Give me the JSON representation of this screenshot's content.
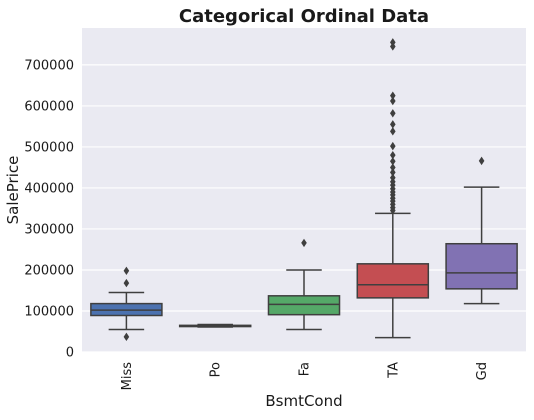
{
  "chart_data": {
    "type": "box",
    "title": "Categorical Ordinal Data",
    "xlabel": "BsmtCond",
    "ylabel": "SalePrice",
    "ylim": [
      0,
      790000
    ],
    "yticks": [
      0,
      100000,
      200000,
      300000,
      400000,
      500000,
      600000,
      700000
    ],
    "ytick_labels": [
      "0",
      "100000",
      "200000",
      "300000",
      "400000",
      "500000",
      "600000",
      "700000"
    ],
    "grid": true,
    "background": "#eaeaf2",
    "categories": [
      "Miss",
      "Po",
      "Fa",
      "TA",
      "Gd"
    ],
    "boxes": [
      {
        "category": "Miss",
        "color": "#4c72b0",
        "whisker_low": 55000,
        "q1": 89000,
        "median": 102000,
        "q3": 118000,
        "whisker_high": 145000,
        "outliers": [
          198000,
          168000,
          37000
        ]
      },
      {
        "category": "Po",
        "color": "#dd8452",
        "whisker_low": 61000,
        "q1": 62000,
        "median": 64000,
        "q3": 65000,
        "whisker_high": 67000,
        "outliers": []
      },
      {
        "category": "Fa",
        "color": "#55a868",
        "whisker_low": 55000,
        "q1": 91000,
        "median": 116000,
        "q3": 137000,
        "whisker_high": 200000,
        "outliers": [
          266000
        ]
      },
      {
        "category": "TA",
        "color": "#c44e52",
        "whisker_low": 35000,
        "q1": 132000,
        "median": 164000,
        "q3": 215000,
        "whisker_high": 338000,
        "outliers": [
          345000,
          352000,
          360000,
          368000,
          375000,
          383000,
          390000,
          398000,
          407000,
          415000,
          425000,
          438000,
          450000,
          465000,
          480000,
          502000,
          538000,
          555000,
          582000,
          612000,
          625000,
          745000,
          755000
        ]
      },
      {
        "category": "Gd",
        "color": "#8172b3",
        "whisker_low": 118000,
        "q1": 154000,
        "median": 193000,
        "q3": 264000,
        "whisker_high": 402000,
        "outliers": [
          466000
        ]
      }
    ]
  }
}
